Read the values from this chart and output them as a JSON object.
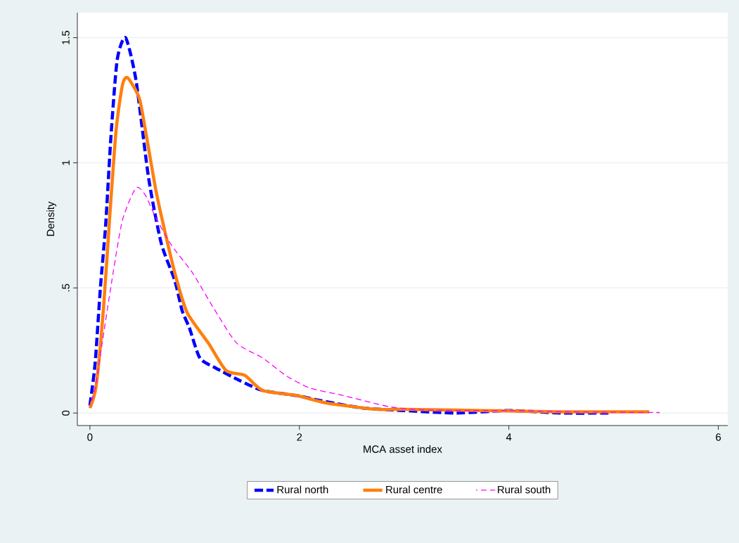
{
  "chart_data": {
    "type": "line",
    "xlabel": "MCA asset index",
    "ylabel": "Density",
    "xlim": [
      -0.12,
      6.09
    ],
    "ylim": [
      -0.05,
      1.6
    ],
    "xticks": [
      0,
      2,
      4,
      6
    ],
    "yticks": [
      0,
      {
        "value": 0.5,
        "label": ".5"
      },
      1,
      1.5
    ],
    "grid": "y",
    "legend": "bottom",
    "marker": "none",
    "series": [
      {
        "name": "Rural north",
        "color": "#0000ff",
        "line_style": "dashed",
        "x": [
          0,
          0.05,
          0.1,
          0.15,
          0.2,
          0.26,
          0.34,
          0.44,
          0.56,
          0.68,
          0.81,
          0.88,
          0.95,
          1.05,
          1.2,
          1.43,
          1.65,
          1.97,
          2.2,
          2.6,
          3.0,
          3.5,
          4.0,
          4.5,
          4.97
        ],
        "values": [
          0.03,
          0.2,
          0.5,
          0.75,
          1.1,
          1.41,
          1.5,
          1.33,
          0.94,
          0.68,
          0.53,
          0.41,
          0.34,
          0.22,
          0.18,
          0.13,
          0.09,
          0.07,
          0.05,
          0.02,
          0.01,
          0.0,
          0.01,
          0.0,
          0.0
        ]
      },
      {
        "name": "Rural centre",
        "color": "#ff7f0e",
        "line_style": "solid",
        "x": [
          0,
          0.06,
          0.13,
          0.19,
          0.25,
          0.31,
          0.36,
          0.47,
          0.53,
          0.63,
          0.73,
          0.83,
          0.93,
          1.13,
          1.3,
          1.48,
          1.65,
          1.97,
          2.26,
          2.73,
          3.0,
          3.5,
          4.0,
          4.5,
          5.34
        ],
        "values": [
          0.02,
          0.11,
          0.42,
          0.79,
          1.13,
          1.31,
          1.34,
          1.26,
          1.13,
          0.89,
          0.7,
          0.53,
          0.4,
          0.28,
          0.17,
          0.15,
          0.09,
          0.07,
          0.04,
          0.015,
          0.015,
          0.012,
          0.008,
          0.005,
          0.005
        ]
      },
      {
        "name": "Rural south",
        "color": "#ff00ff",
        "line_style": "dashed",
        "x": [
          0,
          0.05,
          0.11,
          0.21,
          0.31,
          0.44,
          0.53,
          0.63,
          0.78,
          0.98,
          1.18,
          1.4,
          1.65,
          1.87,
          2.1,
          2.42,
          2.86,
          3.2,
          3.6,
          4.0,
          4.5,
          5.0,
          5.44
        ],
        "values": [
          0.03,
          0.1,
          0.26,
          0.53,
          0.77,
          0.9,
          0.87,
          0.78,
          0.67,
          0.56,
          0.42,
          0.28,
          0.22,
          0.15,
          0.1,
          0.07,
          0.025,
          0.012,
          0.01,
          0.01,
          0.005,
          0.003,
          0.002
        ]
      }
    ]
  }
}
